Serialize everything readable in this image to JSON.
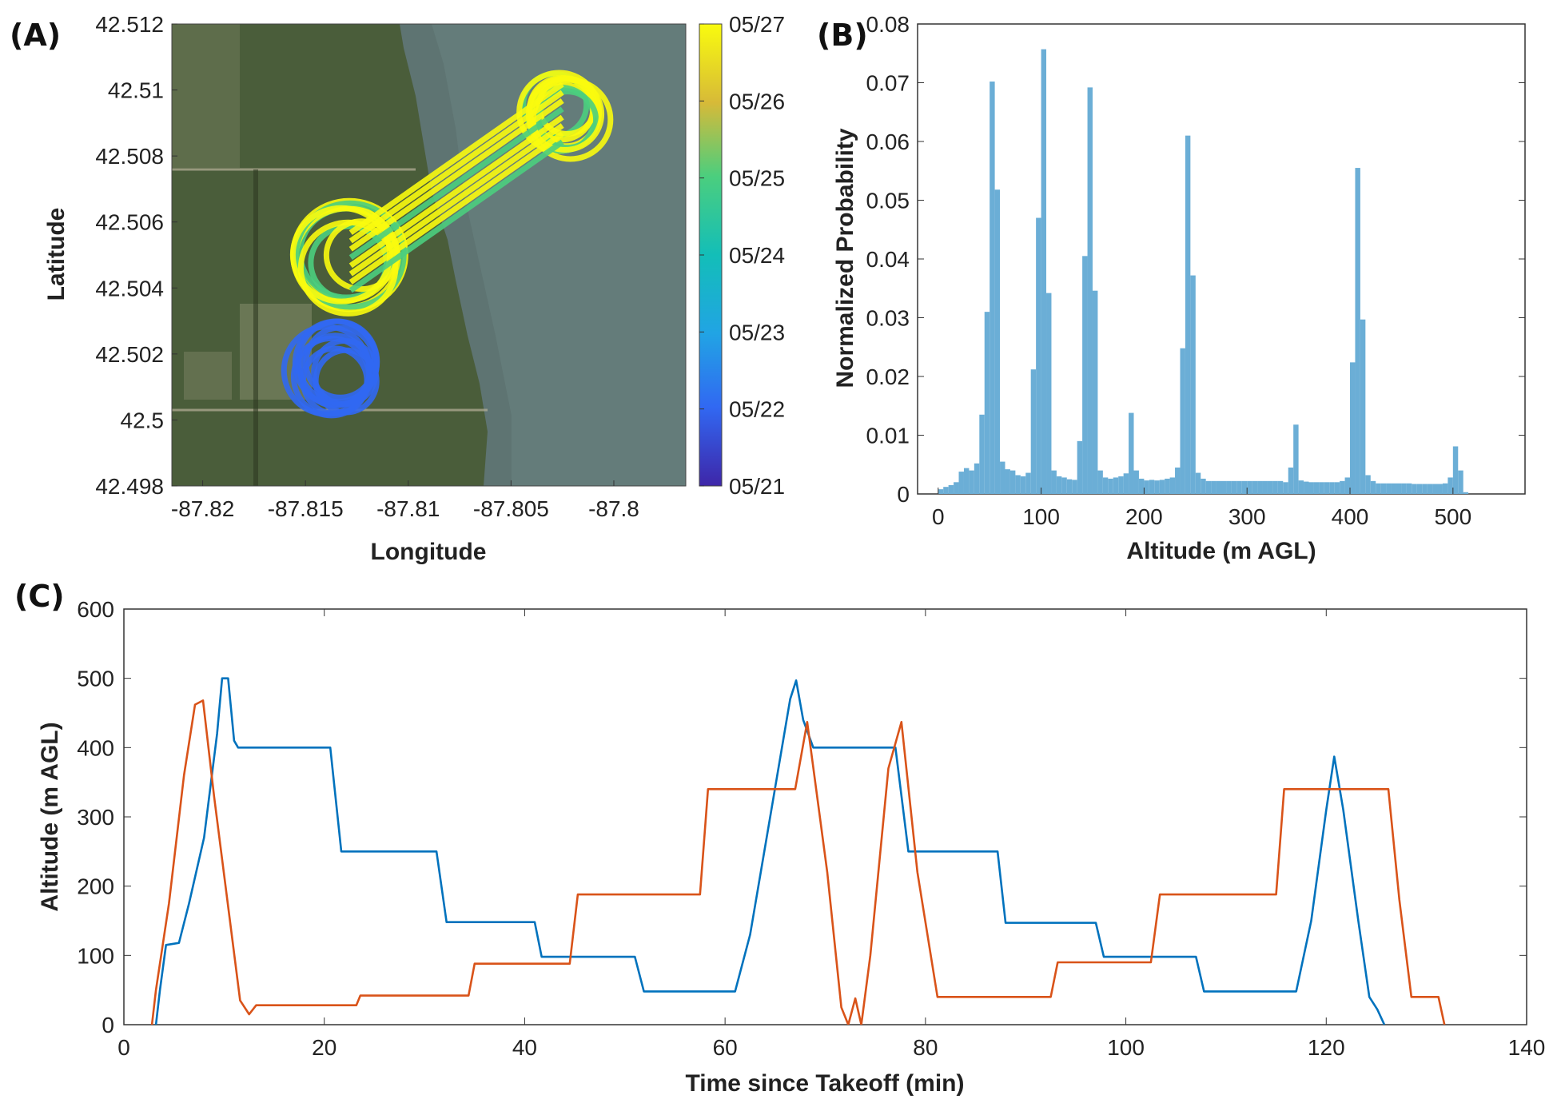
{
  "panels": {
    "a": "(A)",
    "b": "(B)",
    "c": "(C)"
  },
  "chart_data": [
    {
      "type": "scatter",
      "panel": "(A)",
      "xlabel": "Longitude",
      "ylabel": "Latitude",
      "xlim": [
        -87.8215,
        -87.7965
      ],
      "ylim": [
        42.498,
        42.512
      ],
      "xticks": [
        -87.82,
        -87.815,
        -87.81,
        -87.805,
        -87.8
      ],
      "xtick_labels": [
        "-87.82",
        "-87.815",
        "-87.81",
        "-87.805",
        "-87.8"
      ],
      "yticks": [
        42.498,
        42.5,
        42.502,
        42.504,
        42.506,
        42.508,
        42.51,
        42.512
      ],
      "ytick_labels": [
        "42.498",
        "42.5",
        "42.502",
        "42.504",
        "42.506",
        "42.508",
        "42.51",
        "42.512"
      ],
      "background": "satellite imagery (land on left, lake on right)",
      "colormap": "parula",
      "colorbar": {
        "labels": [
          "05/21",
          "05/22",
          "05/23",
          "05/24",
          "05/25",
          "05/26",
          "05/27"
        ],
        "colors": [
          "#3e26a8",
          "#3168f2",
          "#21a4e4",
          "#13beb8",
          "#4bce7e",
          "#d7ba38",
          "#f9fb0e"
        ]
      },
      "orbit_clusters": [
        {
          "center": [
            -87.8135,
            42.5015
          ],
          "radius_lon": 0.0022,
          "radius_lat": 0.0014,
          "color": "#3168f2"
        },
        {
          "center": [
            -87.8128,
            42.5048
          ],
          "radius_lon": 0.0025,
          "radius_lat": 0.0015,
          "color": "#f9fb0e"
        },
        {
          "center": [
            -87.8025,
            42.5093
          ],
          "radius_lon": 0.0018,
          "radius_lat": 0.0011,
          "color": "#f9fb0e"
        }
      ]
    },
    {
      "type": "bar",
      "panel": "(B)",
      "xlabel": "Altitude (m AGL)",
      "ylabel": "Normalized Probability",
      "xlim": [
        -20,
        570
      ],
      "ylim": [
        0,
        0.08
      ],
      "xticks": [
        0,
        100,
        200,
        300,
        400,
        500
      ],
      "yticks": [
        0,
        0.01,
        0.02,
        0.03,
        0.04,
        0.05,
        0.06,
        0.07,
        0.08
      ],
      "ytick_labels": [
        "0",
        "0.01",
        "0.02",
        "0.03",
        "0.04",
        "0.05",
        "0.06",
        "0.07",
        "0.08"
      ],
      "bin_width": 5,
      "bin_start": 0,
      "color": "#6baed6",
      "values": [
        0.0008,
        0.0012,
        0.0015,
        0.002,
        0.0038,
        0.0044,
        0.004,
        0.0052,
        0.0135,
        0.031,
        0.0702,
        0.0518,
        0.0055,
        0.0042,
        0.004,
        0.0032,
        0.003,
        0.0036,
        0.0212,
        0.047,
        0.0757,
        0.0342,
        0.004,
        0.003,
        0.0028,
        0.0025,
        0.0024,
        0.009,
        0.0405,
        0.0692,
        0.0346,
        0.004,
        0.0028,
        0.0026,
        0.0028,
        0.003,
        0.0035,
        0.0138,
        0.004,
        0.0026,
        0.0023,
        0.0024,
        0.0023,
        0.0024,
        0.0026,
        0.0028,
        0.0045,
        0.0248,
        0.061,
        0.0372,
        0.0036,
        0.0026,
        0.0022,
        0.0022,
        0.0022,
        0.0022,
        0.0022,
        0.0022,
        0.0022,
        0.0022,
        0.0022,
        0.0022,
        0.0022,
        0.0022,
        0.0022,
        0.0022,
        0.0022,
        0.002,
        0.0045,
        0.0118,
        0.0023,
        0.0021,
        0.002,
        0.002,
        0.002,
        0.002,
        0.002,
        0.002,
        0.0022,
        0.0028,
        0.0224,
        0.0555,
        0.0297,
        0.0032,
        0.0022,
        0.0018,
        0.0018,
        0.0018,
        0.0018,
        0.0018,
        0.0018,
        0.0018,
        0.0017,
        0.0017,
        0.0017,
        0.0017,
        0.0017,
        0.0017,
        0.0018,
        0.0028,
        0.0081,
        0.004,
        0.0003
      ]
    },
    {
      "type": "line",
      "panel": "(C)",
      "xlabel": "Time since Takeoff (min)",
      "ylabel": "Altitude (m AGL)",
      "xlim": [
        0,
        140
      ],
      "ylim": [
        0,
        600
      ],
      "xticks": [
        0,
        20,
        40,
        60,
        80,
        100,
        120,
        140
      ],
      "yticks": [
        0,
        100,
        200,
        300,
        400,
        500,
        600
      ],
      "series": [
        {
          "color": "#0072bd",
          "points": [
            [
              3.2,
              0
            ],
            [
              3.6,
              50
            ],
            [
              4.2,
              115
            ],
            [
              5.5,
              118
            ],
            [
              6.5,
              175
            ],
            [
              8,
              270
            ],
            [
              9.3,
              420
            ],
            [
              9.8,
              500
            ],
            [
              10.4,
              500
            ],
            [
              11,
              410
            ],
            [
              11.4,
              400
            ],
            [
              20.6,
              400
            ],
            [
              21.7,
              250
            ],
            [
              31.2,
              250
            ],
            [
              32.2,
              148
            ],
            [
              41,
              148
            ],
            [
              41.7,
              98
            ],
            [
              51,
              98
            ],
            [
              51.9,
              48
            ],
            [
              61,
              48
            ],
            [
              62.5,
              130
            ],
            [
              64.5,
              300
            ],
            [
              66.5,
              470
            ],
            [
              67.1,
              497
            ],
            [
              67.8,
              440
            ],
            [
              68.8,
              400
            ],
            [
              77,
              400
            ],
            [
              78.3,
              250
            ],
            [
              87.2,
              250
            ],
            [
              88,
              147
            ],
            [
              97,
              147
            ],
            [
              97.8,
              98
            ],
            [
              107,
              98
            ],
            [
              107.8,
              48
            ],
            [
              117,
              48
            ],
            [
              118.5,
              150
            ],
            [
              120,
              310
            ],
            [
              120.8,
              387
            ],
            [
              121.7,
              310
            ],
            [
              123.2,
              150
            ],
            [
              124.3,
              40
            ],
            [
              125.1,
              22
            ],
            [
              125.8,
              0
            ]
          ]
        },
        {
          "color": "#d95319",
          "points": [
            [
              2.8,
              0
            ],
            [
              3.2,
              50
            ],
            [
              4.5,
              175
            ],
            [
              6,
              360
            ],
            [
              7.1,
              462
            ],
            [
              7.9,
              468
            ],
            [
              9,
              330
            ],
            [
              10.5,
              160
            ],
            [
              11.6,
              35
            ],
            [
              12.5,
              15
            ],
            [
              13.2,
              28
            ],
            [
              20.6,
              28
            ],
            [
              23.2,
              28
            ],
            [
              23.6,
              42
            ],
            [
              34.4,
              42
            ],
            [
              35,
              88
            ],
            [
              44.5,
              88
            ],
            [
              45.3,
              188
            ],
            [
              57.5,
              188
            ],
            [
              58.3,
              340
            ],
            [
              67,
              340
            ],
            [
              68.2,
              437
            ],
            [
              70.2,
              220
            ],
            [
              71.6,
              25
            ],
            [
              72.3,
              0
            ],
            [
              73,
              38
            ],
            [
              73.6,
              0
            ],
            [
              74.5,
              100
            ],
            [
              76.3,
              370
            ],
            [
              77.6,
              437
            ],
            [
              79.2,
              220
            ],
            [
              81.2,
              40
            ],
            [
              92.5,
              40
            ],
            [
              93.2,
              90
            ],
            [
              102.5,
              90
            ],
            [
              103.4,
              188
            ],
            [
              115,
              188
            ],
            [
              115.8,
              340
            ],
            [
              126.2,
              340
            ],
            [
              127.3,
              180
            ],
            [
              128.5,
              40
            ],
            [
              131.2,
              40
            ],
            [
              131.8,
              0
            ]
          ]
        }
      ]
    }
  ]
}
